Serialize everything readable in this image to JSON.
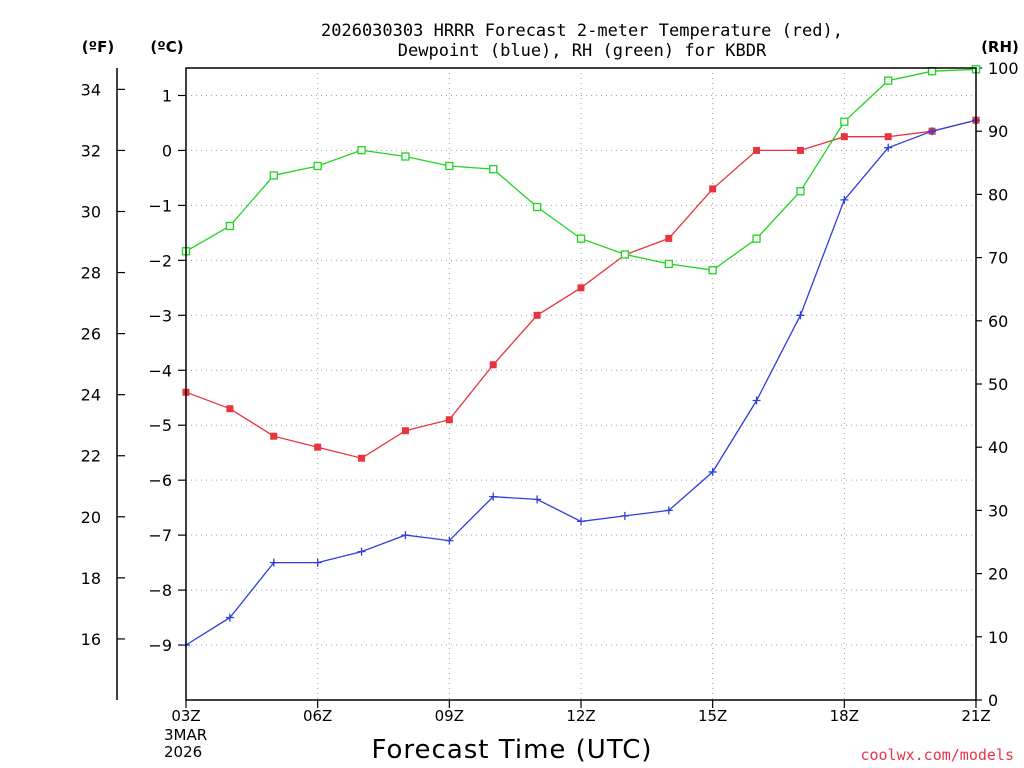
{
  "chart_data": {
    "type": "line",
    "title_line1": "2026030303 HRRR Forecast 2-meter Temperature (red),",
    "title_line2": "Dewpoint (blue), RH (green) for KBDR",
    "unit_f": "(ºF)",
    "unit_c": "(ºC)",
    "unit_rh": "(RH)",
    "xlabel": "Forecast Time (UTC)",
    "date_line1": "3MAR",
    "date_line2": "2026",
    "credit": "coolwx.com/models",
    "x_hours": [
      3,
      4,
      5,
      6,
      7,
      8,
      9,
      10,
      11,
      12,
      13,
      14,
      15,
      16,
      17,
      18,
      19,
      20,
      21
    ],
    "x_ticks": [
      {
        "hour": 3,
        "label": "03Z"
      },
      {
        "hour": 6,
        "label": "06Z"
      },
      {
        "hour": 9,
        "label": "09Z"
      },
      {
        "hour": 12,
        "label": "12Z"
      },
      {
        "hour": 15,
        "label": "15Z"
      },
      {
        "hour": 18,
        "label": "18Z"
      },
      {
        "hour": 21,
        "label": "21Z"
      }
    ],
    "celsius_axis": {
      "min": -10,
      "max": 1.5,
      "ticks": [
        1,
        0,
        -1,
        -2,
        -3,
        -4,
        -5,
        -6,
        -7,
        -8,
        -9
      ]
    },
    "fahrenheit_ticks": [
      34,
      32,
      30,
      28,
      26,
      24,
      22,
      20,
      18,
      16
    ],
    "rh_axis": {
      "min": 0,
      "max": 100,
      "ticks": [
        100,
        90,
        80,
        70,
        60,
        50,
        40,
        30,
        20,
        10,
        0
      ]
    },
    "series": [
      {
        "name": "Temperature",
        "units": "C",
        "color": "#e8343e",
        "marker": "filled-square",
        "values": [
          -4.4,
          -4.7,
          -5.2,
          -5.4,
          -5.6,
          -5.1,
          -4.9,
          -3.9,
          -3.0,
          -2.5,
          -1.9,
          -1.6,
          -0.7,
          0.0,
          0.0,
          0.25,
          0.25,
          0.35,
          0.55
        ]
      },
      {
        "name": "Dewpoint",
        "units": "C",
        "color": "#2c3fdc",
        "marker": "plus",
        "values": [
          -9.0,
          -8.5,
          -7.5,
          -7.5,
          -7.3,
          -7.0,
          -7.1,
          -6.3,
          -6.35,
          -6.75,
          -6.65,
          -6.55,
          -5.85,
          -4.55,
          -3.0,
          -0.9,
          0.05,
          0.35,
          0.55
        ]
      },
      {
        "name": "RH",
        "units": "%",
        "color": "#21d421",
        "marker": "open-square",
        "values": [
          71,
          75,
          83,
          84.5,
          87,
          86,
          84.5,
          84,
          78,
          73,
          70.5,
          69,
          68,
          73,
          80.5,
          91.5,
          98,
          99.5,
          99.8
        ]
      }
    ]
  }
}
